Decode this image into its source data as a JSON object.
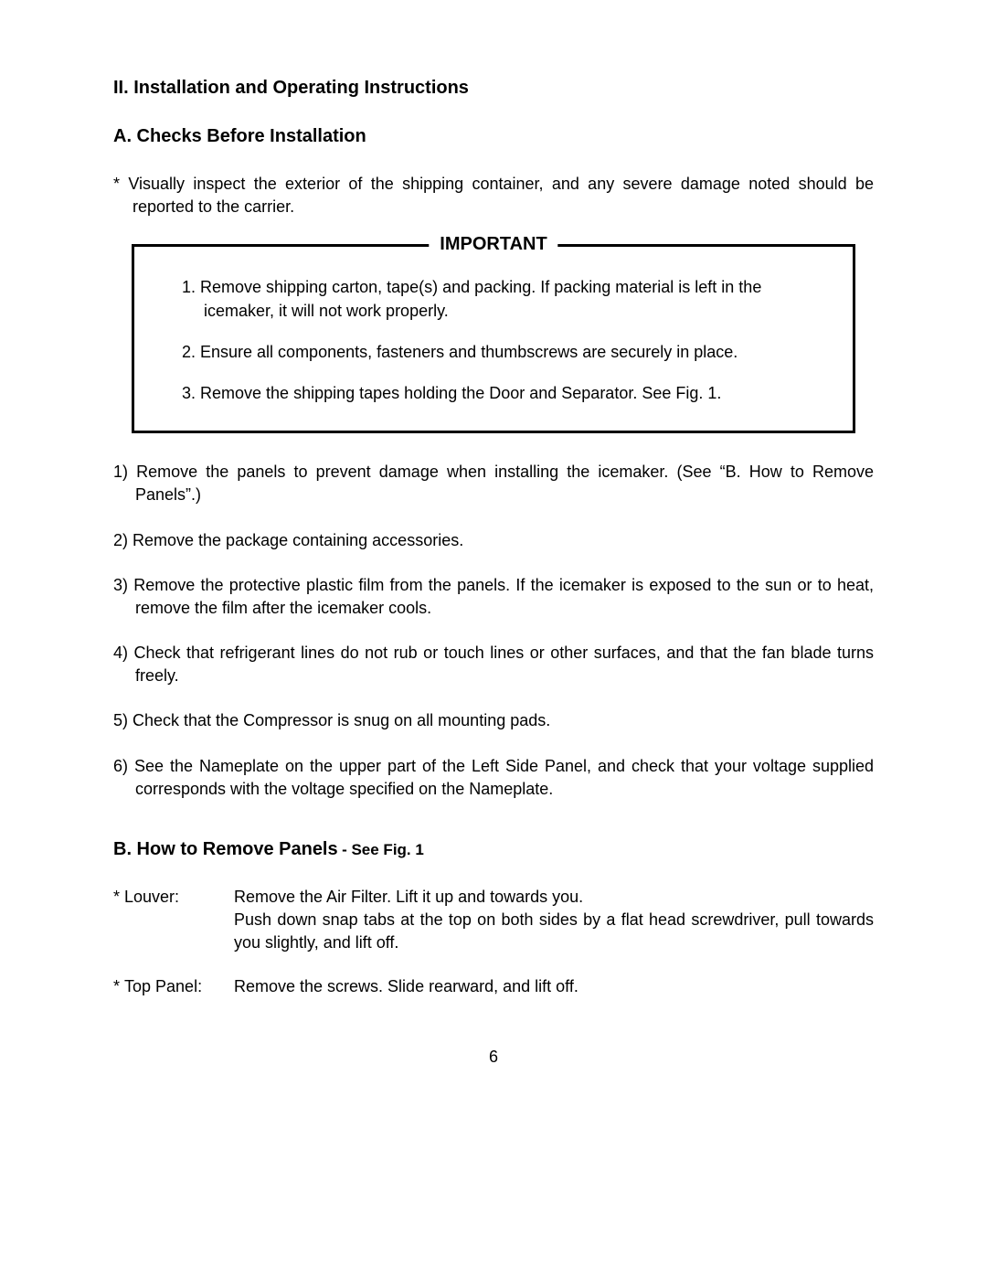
{
  "page": {
    "background_color": "#ffffff",
    "text_color": "#000000",
    "font_family": "Arial, Helvetica, sans-serif",
    "page_number": "6"
  },
  "section": {
    "heading": "II. Installation and Operating Instructions",
    "subheading_a": "A. Checks Before Installation",
    "star_intro": "* Visually inspect the exterior of the shipping container, and any severe damage noted should be reported to the carrier."
  },
  "important_box": {
    "label": "IMPORTANT",
    "border_color": "#000000",
    "border_width": 3,
    "items": [
      "1. Remove shipping carton, tape(s) and packing.  If packing material is left in the icemaker, it will not work properly.",
      "2. Ensure all components, fasteners and thumbscrews are securely in place.",
      "3. Remove the shipping tapes holding the Door and Separator.  See Fig. 1."
    ]
  },
  "numbered_list": [
    "1) Remove the panels to prevent damage when installing the icemaker.  (See “B. How to Remove Panels”.)",
    "2) Remove the package containing accessories.",
    "3) Remove the protective plastic film from the panels.  If the icemaker is exposed to the sun or to heat, remove the film after the icemaker cools.",
    "4) Check that refrigerant lines do not rub or touch lines or other surfaces, and that the fan blade turns freely.",
    "5) Check that the Compressor is snug on all mounting pads.",
    "6) See the Nameplate on the upper part of the Left Side Panel, and check that your voltage supplied corresponds with the voltage specified on the Nameplate."
  ],
  "subsection_b": {
    "heading": "B. How to Remove Panels",
    "suffix": " - See Fig. 1",
    "items": [
      {
        "label": "* Louver:",
        "description": "Remove the Air Filter.  Lift it up and towards you.\nPush down snap tabs at the top on both sides by a flat head screwdriver, pull towards you slightly, and lift off."
      },
      {
        "label": "* Top Panel:",
        "description": "Remove the screws.  Slide rearward, and lift off."
      }
    ]
  }
}
